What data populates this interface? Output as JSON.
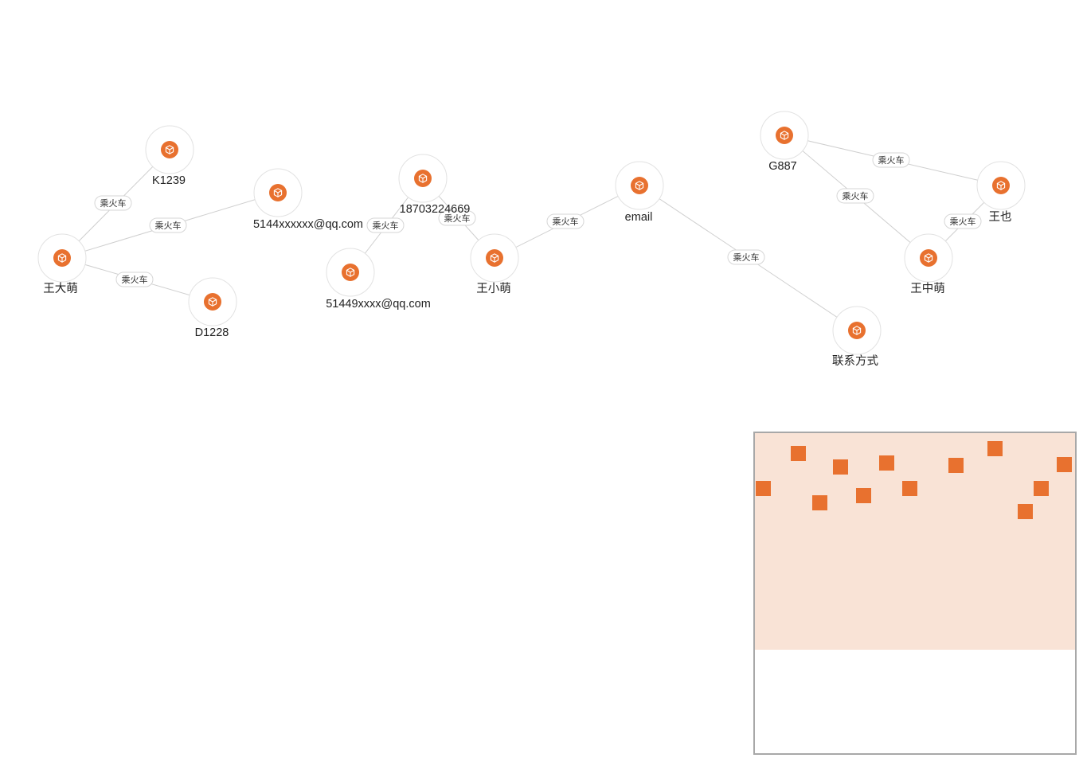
{
  "theme": {
    "node_color": "#e8712f",
    "edge_color": "#cfcfcf",
    "minimap_viewport_color": "#f9e3d6"
  },
  "icon": "cube-icon",
  "nodes": [
    {
      "id": "wang-da-meng",
      "label": "王大萌"
    },
    {
      "id": "k1239",
      "label": "K1239"
    },
    {
      "id": "email-5144",
      "label": "5144xxxxxx@qq.com"
    },
    {
      "id": "d1228",
      "label": "D1228"
    },
    {
      "id": "phone",
      "label": "18703224669"
    },
    {
      "id": "email-51449",
      "label": "51449xxxx@qq.com"
    },
    {
      "id": "wang-xiao-meng",
      "label": "王小萌"
    },
    {
      "id": "email",
      "label": "email"
    },
    {
      "id": "contact",
      "label": "联系方式"
    },
    {
      "id": "g887",
      "label": "G887"
    },
    {
      "id": "wang-ye",
      "label": "王也"
    },
    {
      "id": "wang-zhong-meng",
      "label": "王中萌"
    }
  ],
  "edges": [
    {
      "source": "wang-da-meng",
      "target": "k1239",
      "label": "乘火车"
    },
    {
      "source": "wang-da-meng",
      "target": "email-5144",
      "label": "乘火车"
    },
    {
      "source": "wang-da-meng",
      "target": "d1228",
      "label": "乘火车"
    },
    {
      "source": "email-51449",
      "target": "phone",
      "label": "乘火车"
    },
    {
      "source": "phone",
      "target": "wang-xiao-meng",
      "label": "乘火车"
    },
    {
      "source": "wang-xiao-meng",
      "target": "email",
      "label": "乘火车"
    },
    {
      "source": "email",
      "target": "contact",
      "label": "乘火车"
    },
    {
      "source": "g887",
      "target": "wang-ye",
      "label": "乘火车"
    },
    {
      "source": "g887",
      "target": "wang-zhong-meng",
      "label": "乘火车"
    },
    {
      "source": "wang-zhong-meng",
      "target": "wang-ye",
      "label": "乘火车"
    }
  ]
}
